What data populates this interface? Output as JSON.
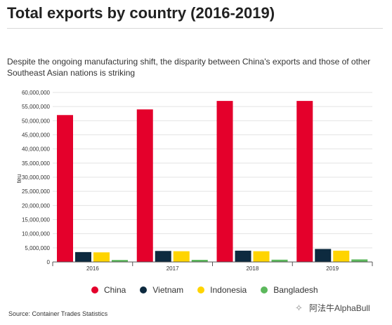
{
  "header": {
    "title": "Total exports by country (2016-2019)",
    "subtitle": "Despite the ongoing manufacturing shift, the disparity between China's exports and those of other Southeast Asian nations is striking"
  },
  "source": "Source: Container Trades Statistics",
  "watermark": "阿法牛AlphaBull",
  "chart_data": {
    "type": "bar",
    "title": "Total exports by country (2016-2019)",
    "ylabel": "teu",
    "xlabel": "",
    "ylim": [
      0,
      60000000
    ],
    "yticks": [
      {
        "value": 0,
        "label": "0"
      },
      {
        "value": 5000000,
        "label": "5,000,000"
      },
      {
        "value": 10000000,
        "label": "10,000,000"
      },
      {
        "value": 15000000,
        "label": "15,000,000"
      },
      {
        "value": 20000000,
        "label": "20,000,000"
      },
      {
        "value": 25000000,
        "label": "25,000,000"
      },
      {
        "value": 30000000,
        "label": "30,000,000"
      },
      {
        "value": 35000000,
        "label": "35,000,000"
      },
      {
        "value": 40000000,
        "label": "40,000,000"
      },
      {
        "value": 45000000,
        "label": "45,000,000"
      },
      {
        "value": 50000000,
        "label": "50,000,000"
      },
      {
        "value": 55000000,
        "label": "55,000,000"
      },
      {
        "value": 60000000,
        "label": "60,000,000"
      }
    ],
    "categories": [
      "2016",
      "2017",
      "2018",
      "2019"
    ],
    "series": [
      {
        "name": "China",
        "color": "#e4002b",
        "values": [
          52000000,
          54000000,
          57000000,
          57000000
        ]
      },
      {
        "name": "Vietnam",
        "color": "#0d2a3f",
        "values": [
          3500000,
          3900000,
          4000000,
          4600000
        ]
      },
      {
        "name": "Indonesia",
        "color": "#ffd400",
        "values": [
          3400000,
          3800000,
          3800000,
          4000000
        ]
      },
      {
        "name": "Bangladesh",
        "color": "#5cb85c",
        "values": [
          700000,
          750000,
          800000,
          900000
        ]
      }
    ],
    "grid": "horizontal",
    "legend_position": "bottom"
  }
}
